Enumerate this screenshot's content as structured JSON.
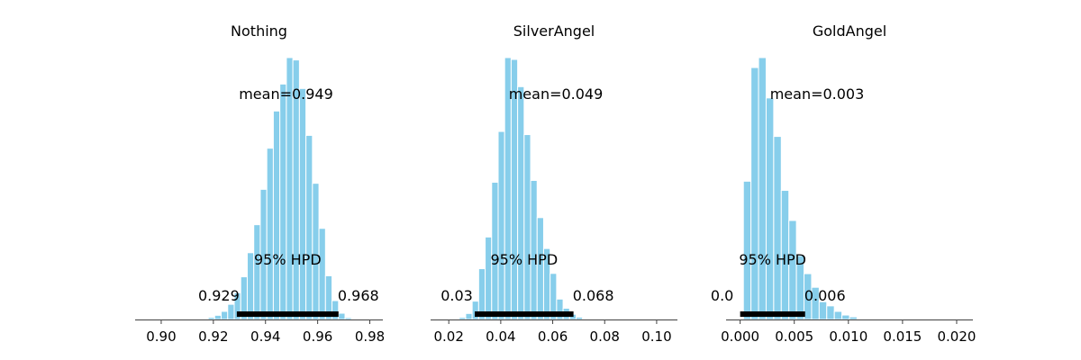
{
  "chart_data": [
    {
      "type": "bar",
      "title": "Nothing",
      "mean_label": "mean=0.949",
      "hpd_label": "95% HPD",
      "hpd_low_label": "0.929",
      "hpd_high_label": "0.968",
      "hpd": [
        0.929,
        0.968
      ],
      "xlim": [
        0.89,
        0.985
      ],
      "xticks": [
        "0.90",
        "0.92",
        "0.94",
        "0.96",
        "0.98"
      ],
      "bin_start": 0.9155,
      "bin_width": 0.0025,
      "values": [
        0.3,
        0.8,
        1.6,
        3.1,
        5.8,
        10.2,
        16.3,
        25.5,
        36.2,
        49.7,
        65.4,
        79.6,
        89.9,
        100.0,
        99.1,
        88.2,
        70.3,
        52.0,
        34.8,
        16.7,
        7.2,
        2.4,
        0.7,
        0.2
      ]
    },
    {
      "type": "bar",
      "title": "SilverAngel",
      "mean_label": "mean=0.049",
      "hpd_label": "95% HPD",
      "hpd_low_label": "0.03",
      "hpd_high_label": "0.068",
      "hpd": [
        0.03,
        0.068
      ],
      "xlim": [
        0.013,
        0.108
      ],
      "xticks": [
        "0.02",
        "0.04",
        "0.06",
        "0.08",
        "0.10"
      ],
      "bin_start": 0.0215,
      "bin_width": 0.0025,
      "values": [
        0.3,
        0.8,
        2.3,
        7.0,
        19.4,
        31.5,
        52.4,
        71.8,
        100.0,
        99.3,
        88.9,
        70.6,
        53.1,
        38.9,
        27.1,
        17.6,
        7.8,
        4.3,
        2.0,
        0.9,
        0.3
      ]
    },
    {
      "type": "bar",
      "title": "GoldAngel",
      "mean_label": "mean=0.003",
      "hpd_label": "95% HPD",
      "hpd_low_label": "0.0",
      "hpd_high_label": "0.006",
      "hpd": [
        0.0,
        0.006
      ],
      "xlim": [
        -0.0013,
        0.0215
      ],
      "xticks": [
        "0.000",
        "0.005",
        "0.010",
        "0.015",
        "0.020"
      ],
      "bin_start": 0.0003,
      "bin_width": 0.0007,
      "values": [
        52.8,
        96.2,
        100.0,
        84.6,
        69.9,
        49.3,
        37.8,
        24.4,
        17.5,
        12.3,
        6.8,
        5.2,
        3.1,
        1.7,
        1.0,
        0.3,
        0.2
      ]
    }
  ],
  "colors": {
    "bar": "#87ceeb",
    "hpd_line": "#000000",
    "axis": "#404040"
  }
}
